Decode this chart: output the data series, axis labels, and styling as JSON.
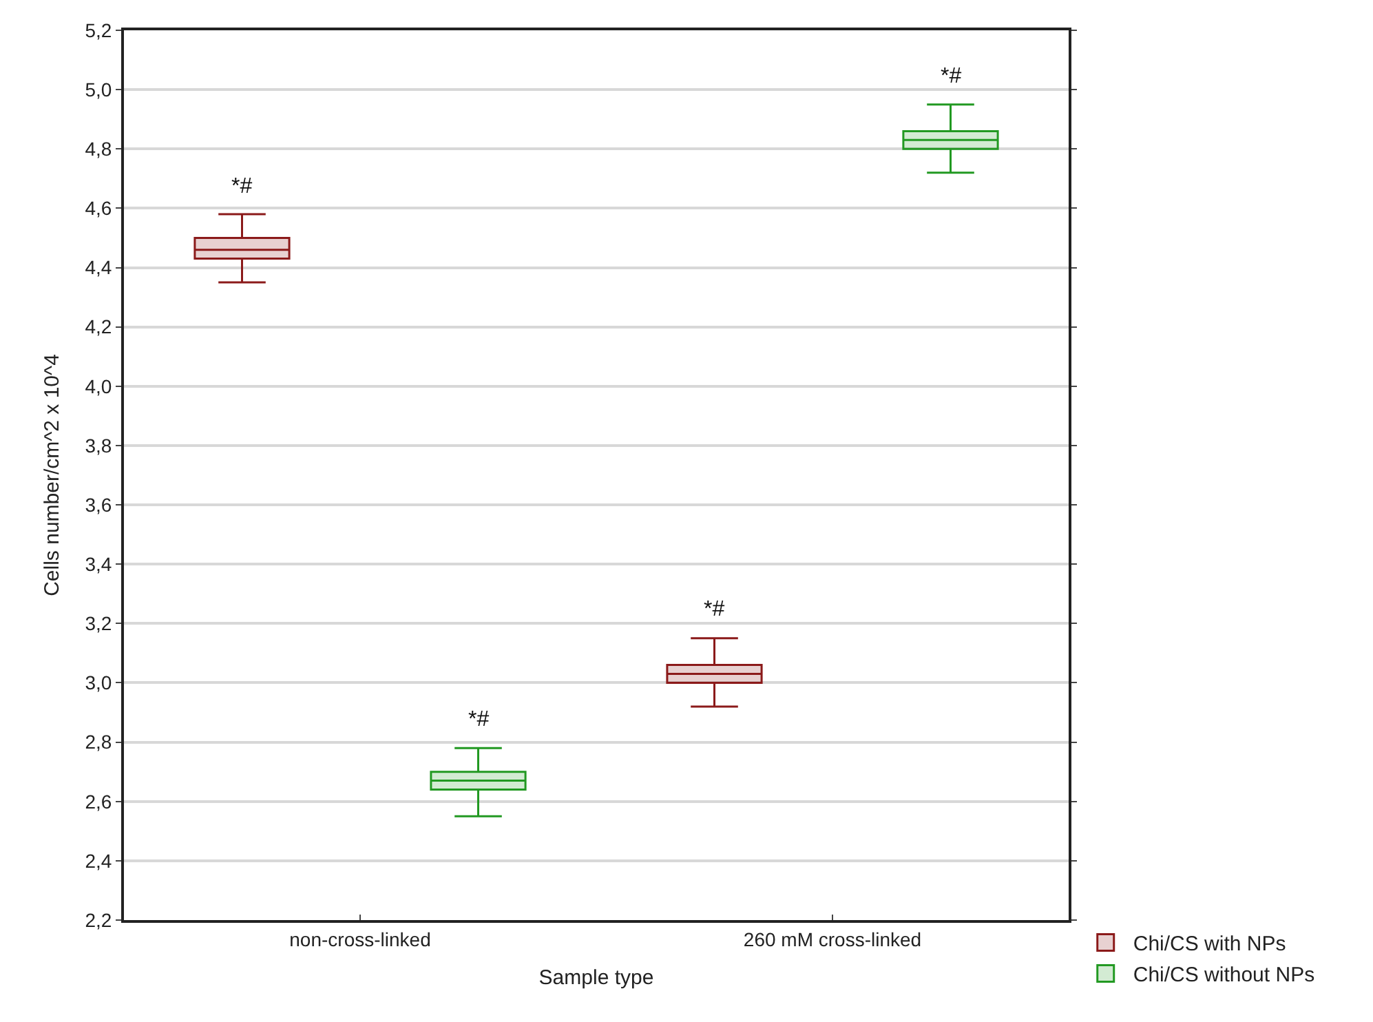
{
  "chart_data": {
    "type": "box",
    "xlabel": "Sample type",
    "ylabel": "Cells number/cm^2 x 10^4",
    "categories": [
      "non-cross-linked",
      "260 mM cross-linked"
    ],
    "series": [
      {
        "name": "Chi/CS with NPs",
        "color": "#8b1a1a",
        "boxes": [
          {
            "low": 4.35,
            "q1": 4.43,
            "median": 4.46,
            "q3": 4.5,
            "high": 4.58
          },
          {
            "low": 2.92,
            "q1": 3.0,
            "median": 3.03,
            "q3": 3.06,
            "high": 3.15
          }
        ]
      },
      {
        "name": "Chi/CS without NPs",
        "color": "#229922",
        "boxes": [
          {
            "low": 2.55,
            "q1": 2.64,
            "median": 2.67,
            "q3": 2.7,
            "high": 2.78
          },
          {
            "low": 4.72,
            "q1": 4.8,
            "median": 4.83,
            "q3": 4.86,
            "high": 4.95
          }
        ]
      }
    ],
    "ylim": [
      2.2,
      5.2
    ],
    "yticks": [
      {
        "value": 2.2,
        "label": "2,2"
      },
      {
        "value": 2.4,
        "label": "2,4"
      },
      {
        "value": 2.6,
        "label": "2,6"
      },
      {
        "value": 2.8,
        "label": "2,8"
      },
      {
        "value": 3.0,
        "label": "3,0"
      },
      {
        "value": 3.2,
        "label": "3,2"
      },
      {
        "value": 3.4,
        "label": "3,4"
      },
      {
        "value": 3.6,
        "label": "3,6"
      },
      {
        "value": 3.8,
        "label": "3,8"
      },
      {
        "value": 4.0,
        "label": "4,0"
      },
      {
        "value": 4.2,
        "label": "4,2"
      },
      {
        "value": 4.4,
        "label": "4,4"
      },
      {
        "value": 4.6,
        "label": "4,6"
      },
      {
        "value": 4.8,
        "label": "4,8"
      },
      {
        "value": 5.0,
        "label": "5,0"
      },
      {
        "value": 5.2,
        "label": "5,2"
      }
    ],
    "annotations": [
      "*#",
      "*#",
      "*#",
      "*#"
    ],
    "grid": "y",
    "legend": "bottom right"
  }
}
